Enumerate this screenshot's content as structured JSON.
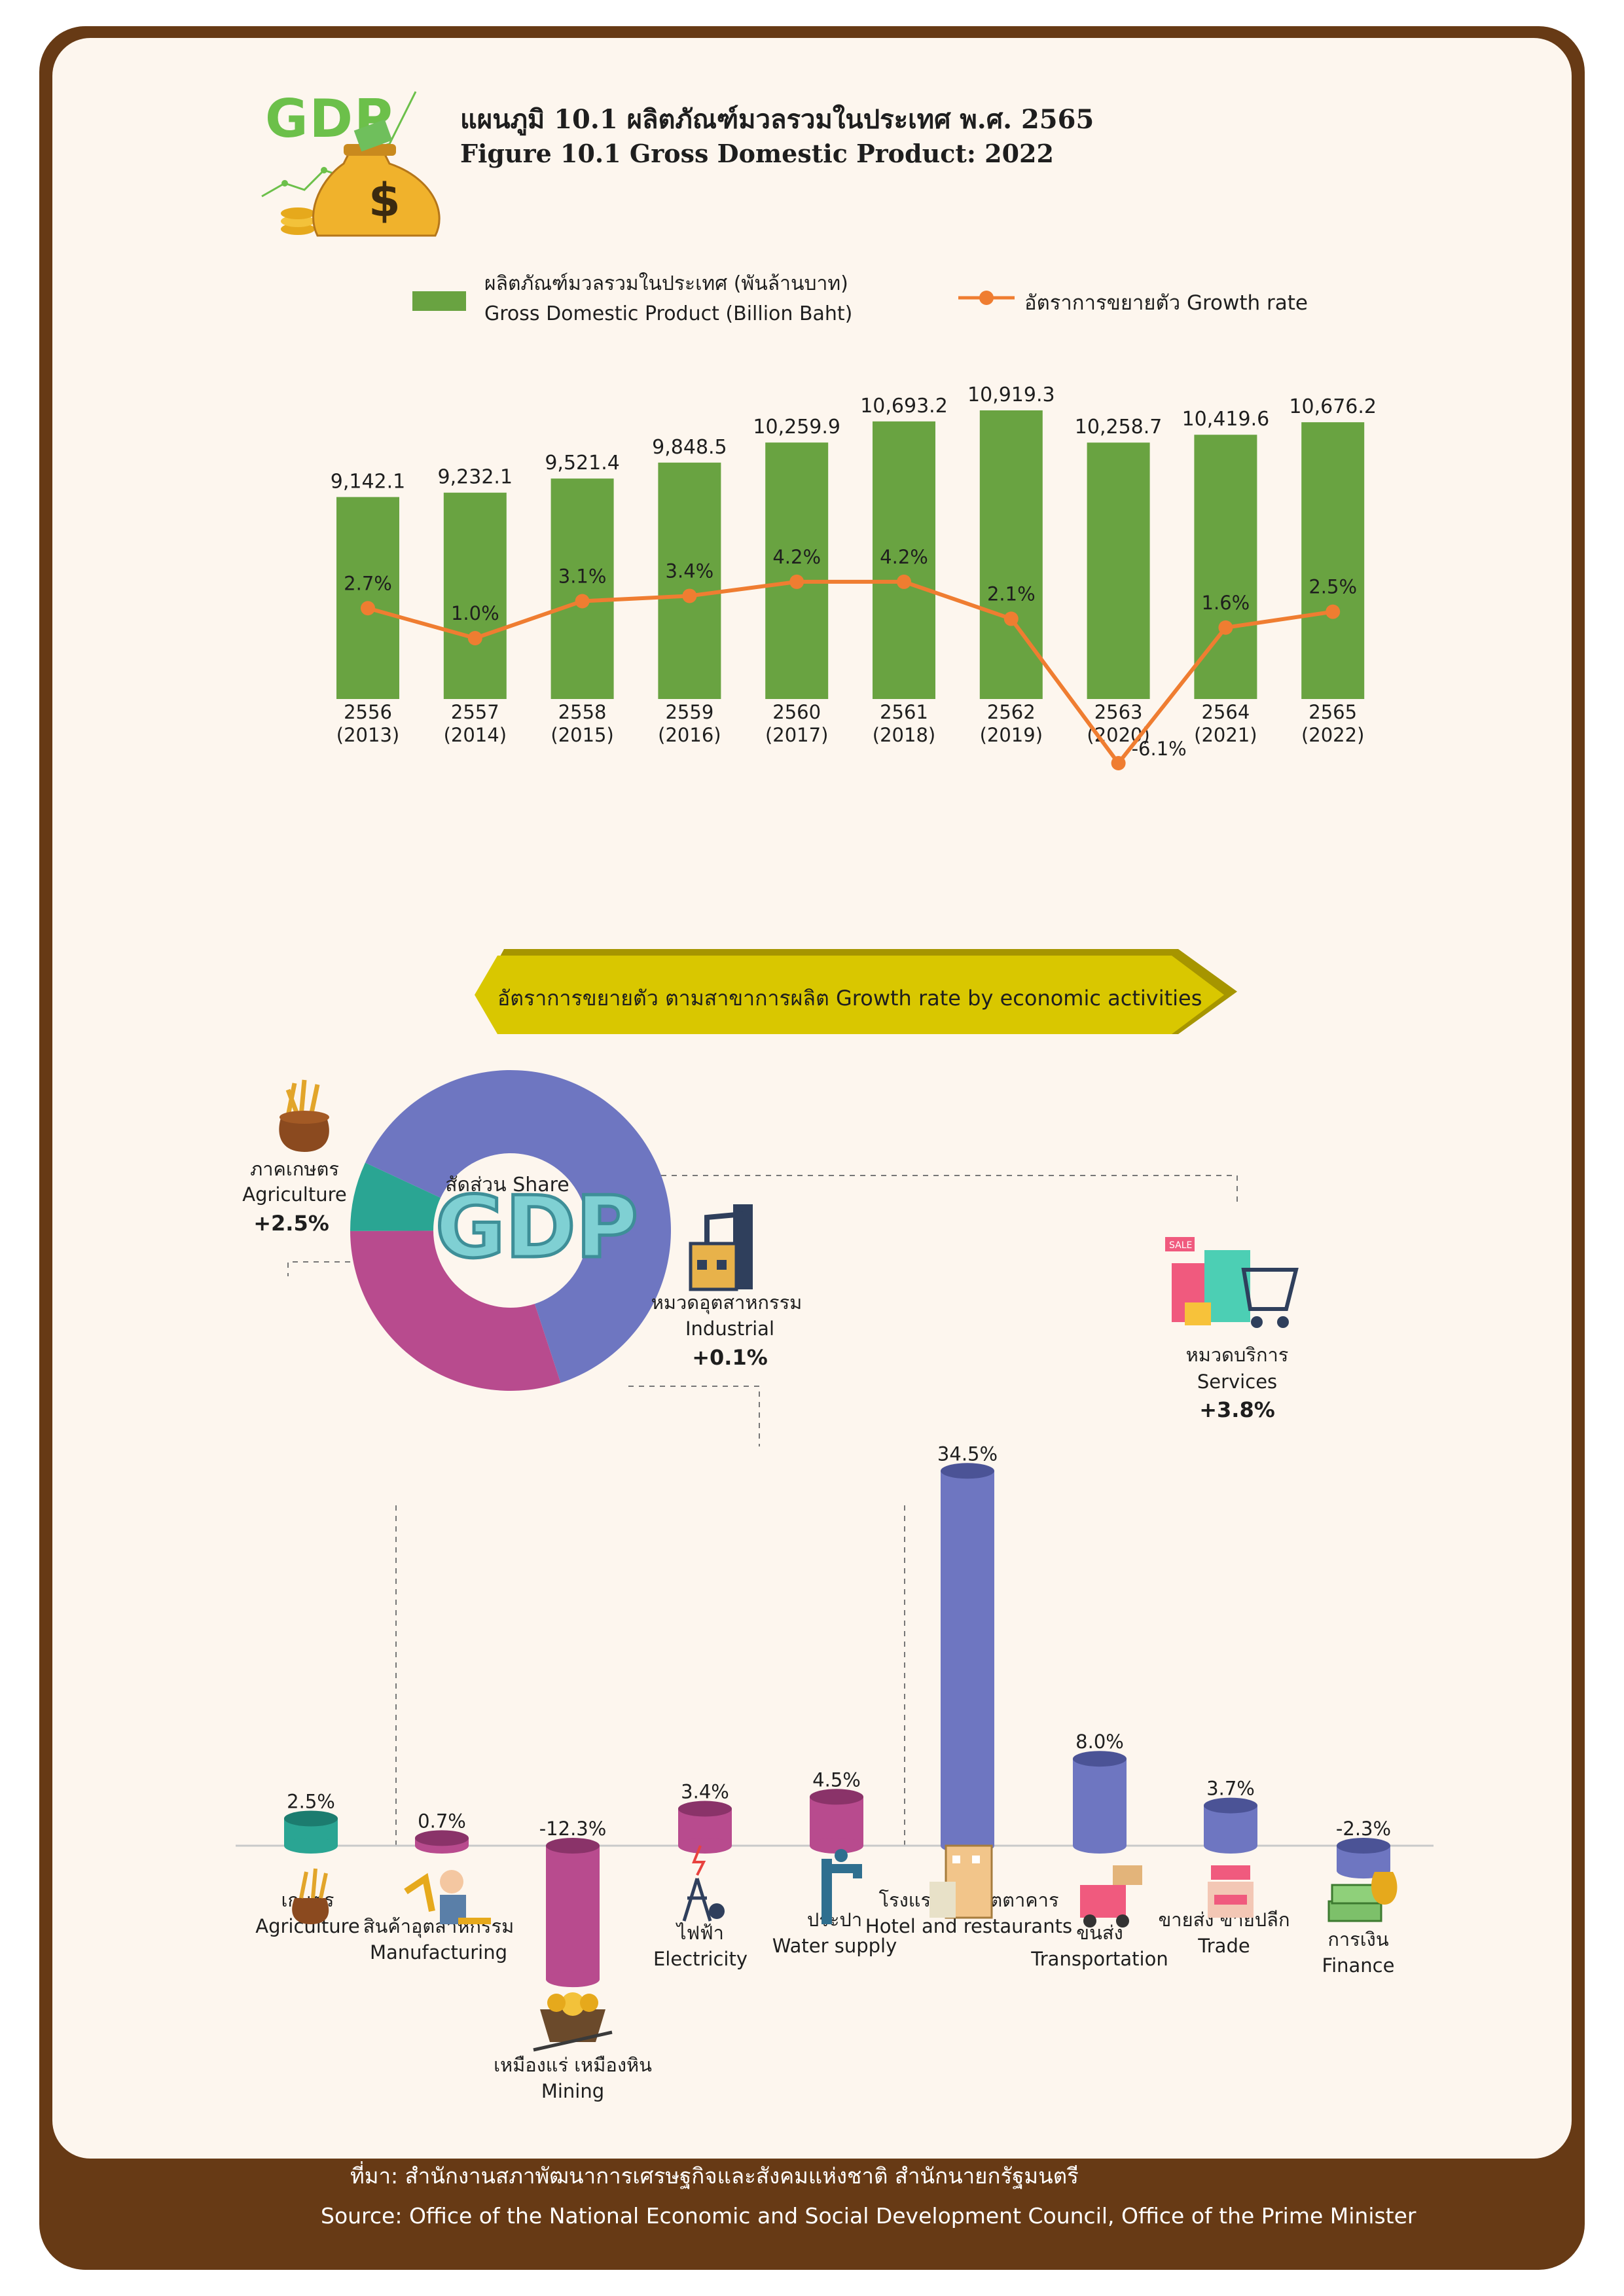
{
  "title_th": "แผนภูมิ 10.1 ผลิตภัณฑ์มวลรวมในประเทศ พ.ศ. 2565",
  "title_en": "Figure  10.1 Gross Domestic Product: 2022",
  "logo_text": "GDP",
  "legend": {
    "gdp_th": "ผลิตภัณฑ์มวลรวมในประเทศ  (พันล้านบาท)",
    "gdp_en": "Gross Domestic Product (Billion Baht)",
    "growth": "อัตราการขยายตัว  Growth rate"
  },
  "colors": {
    "bar": "#69a341",
    "line": "#ef7d31",
    "agri": "#2aa593",
    "industrial": "#b84b8e",
    "services": "#6e76c1",
    "frame": "#673a15"
  },
  "chart_data": [
    {
      "type": "bar",
      "categories": [
        "2556\n(2013)",
        "2557\n(2014)",
        "2558\n(2015)",
        "2559\n(2016)",
        "2560\n(2017)",
        "2561\n(2018)",
        "2562\n(2019)",
        "2563\n(2020)",
        "2564\n(2021)",
        "2565\n(2022)"
      ],
      "series": [
        {
          "name": "ผลิตภัณฑ์มวลรวมในประเทศ  (พันล้านบาท) Gross Domestic Product (Billion Baht)",
          "values": [
            9142.1,
            9232.1,
            9521.4,
            9848.5,
            10259.9,
            10693.2,
            10919.3,
            10258.7,
            10419.6,
            10676.2
          ],
          "labels": [
            "9,142.1",
            "9,232.1",
            "9,521.4",
            "9,848.5",
            "10,259.9",
            "10,693.2",
            "10,919.3",
            "10,258.7",
            "10,419.6",
            "10,676.2"
          ]
        },
        {
          "name": "อัตราการขยายตัว  Growth rate",
          "type": "line",
          "values": [
            2.7,
            1.0,
            3.1,
            3.4,
            4.2,
            4.2,
            2.1,
            -6.1,
            1.6,
            2.5
          ],
          "labels": [
            "2.7%",
            "1.0%",
            "3.1%",
            "3.4%",
            "4.2%",
            "4.2%",
            "2.1%",
            "-6.1%",
            "1.6%",
            "2.5%"
          ]
        }
      ],
      "legend": "top"
    },
    {
      "type": "pie",
      "title": "สัดส่วน Share",
      "center_text": "GDP",
      "segments": [
        {
          "name": "Services",
          "share": 0.63
        },
        {
          "name": "Industrial",
          "share": 0.3
        },
        {
          "name": "Agriculture",
          "share": 0.07
        }
      ],
      "labels": [
        {
          "th": "ภาคเกษตร",
          "en": "Agriculture",
          "value": "+2.5%"
        },
        {
          "th": "หมวดอุตสาหกรรม",
          "en": "Industrial",
          "value": "+0.1%"
        },
        {
          "th": "หมวดบริการ",
          "en": "Services",
          "value": "+3.8%"
        }
      ]
    },
    {
      "type": "bar",
      "title": "อัตราการขยายตัว ตามสาขาการผลิต  Growth rate by economic activities",
      "categories": [
        "เกษตร Agriculture",
        "สินค้าอุตสาหกรรม Manufacturing",
        "เหมืองแร่ เหมืองหิน Mining",
        "ไฟฟ้า Electricity",
        "ประปา Water supply",
        "โรงแรมและภัตตาคาร Hotel and restaurants",
        "ขนส่ง Transportation",
        "ขายส่ง ขายปลีก Trade",
        "การเงิน Finance"
      ],
      "values": [
        2.5,
        0.7,
        -12.3,
        3.4,
        4.5,
        34.5,
        8.0,
        3.7,
        -2.3
      ],
      "labels": [
        "2.5%",
        "0.7%",
        "-12.3%",
        "3.4%",
        "4.5%",
        "34.5%",
        "8.0%",
        "3.7%",
        "-2.3%"
      ],
      "groups": [
        "agri",
        "industrial",
        "industrial",
        "industrial",
        "industrial",
        "services",
        "services",
        "services",
        "services"
      ]
    }
  ],
  "activities": [
    {
      "th": "เกษตร",
      "en": "Agriculture"
    },
    {
      "th": "สินค้าอุตสาหกรรม",
      "en": "Manufacturing"
    },
    {
      "th": "เหมืองแร่ เหมืองหิน",
      "en": "Mining"
    },
    {
      "th": "ไฟฟ้า",
      "en": "Electricity"
    },
    {
      "th": "ประปา",
      "en": "Water supply"
    },
    {
      "th": "โรงแรมและภัตตาคาร",
      "en": "Hotel and restaurants"
    },
    {
      "th": "ขนส่ง",
      "en": "Transportation"
    },
    {
      "th": "ขายส่ง ขายปลีก",
      "en": "Trade"
    },
    {
      "th": "การเงิน",
      "en": "Finance"
    }
  ],
  "source_th": "ที่มา: สำนักงานสภาพัฒนาการเศรษฐกิจและสังคมแห่งชาติ  สำนักนายกรัฐมนตรี",
  "source_en": "Source: Office of the National Economic and Social Development Council, Office of the Prime Minister"
}
